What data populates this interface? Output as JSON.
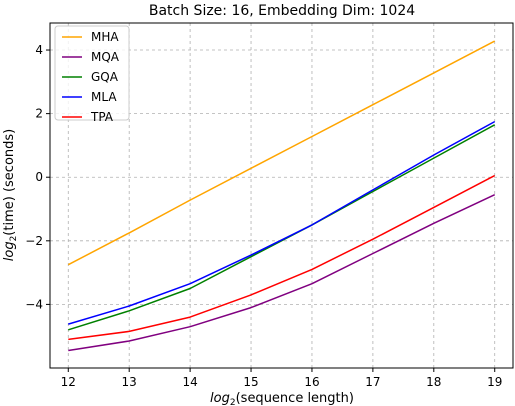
{
  "chart_data": {
    "type": "line",
    "title": "Batch Size: 16, Embedding Dim: 1024",
    "xlabel_prefix": "log",
    "xlabel_sub": "2",
    "xlabel_rest": "(sequence length)",
    "ylabel_prefix": "log",
    "ylabel_sub": "2",
    "ylabel_rest": "(time) (seconds)",
    "x": [
      12,
      13,
      14,
      15,
      16,
      17,
      18,
      19
    ],
    "xlim": [
      11.7,
      19.3
    ],
    "ylim": [
      -6.0,
      4.85
    ],
    "xticks": [
      12,
      13,
      14,
      15,
      16,
      17,
      18,
      19
    ],
    "yticks": [
      -4,
      -2,
      0,
      2,
      4
    ],
    "ytick_labels": [
      "−4",
      "−2",
      "0",
      "2",
      "4"
    ],
    "grid": true,
    "legend_position": "top-left",
    "series": [
      {
        "name": "MHA",
        "color": "#FFA500",
        "values": [
          -2.75,
          -1.75,
          -0.72,
          0.28,
          1.28,
          2.28,
          3.28,
          4.28
        ]
      },
      {
        "name": "MQA",
        "color": "#800080",
        "values": [
          -5.45,
          -5.15,
          -4.7,
          -4.1,
          -3.35,
          -2.4,
          -1.45,
          -0.55
        ]
      },
      {
        "name": "GQA",
        "color": "#008000",
        "values": [
          -4.8,
          -4.2,
          -3.5,
          -2.5,
          -1.5,
          -0.45,
          0.6,
          1.65
        ]
      },
      {
        "name": "MLA",
        "color": "#0000FF",
        "values": [
          -4.62,
          -4.05,
          -3.35,
          -2.45,
          -1.5,
          -0.4,
          0.7,
          1.75
        ]
      },
      {
        "name": "TPA",
        "color": "#FF0000",
        "values": [
          -5.1,
          -4.85,
          -4.4,
          -3.7,
          -2.9,
          -1.95,
          -0.95,
          0.05
        ]
      }
    ]
  }
}
